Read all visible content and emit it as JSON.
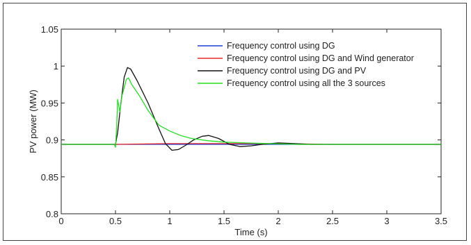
{
  "chart_data": {
    "type": "line",
    "title": "",
    "xlabel": "Time (s)",
    "ylabel": "PV power (MW)",
    "xlim": [
      0,
      3.5
    ],
    "ylim": [
      0.8,
      1.05
    ],
    "xticks": [
      "0",
      "0.5",
      "1",
      "1.5",
      "2",
      "2.5",
      "3",
      "3.5"
    ],
    "yticks": [
      "0.8",
      "0.85",
      "0.9",
      "0.95",
      "1",
      "1.05"
    ],
    "grid": false,
    "legend_position": "top-right",
    "series": [
      {
        "name": "Frequency control using DG",
        "color": "#1f3fd6",
        "points": [
          [
            0,
            0.894
          ],
          [
            0.5,
            0.894
          ],
          [
            1.0,
            0.894
          ],
          [
            1.5,
            0.894
          ],
          [
            2.0,
            0.894
          ],
          [
            2.5,
            0.894
          ],
          [
            3.0,
            0.894
          ],
          [
            3.5,
            0.894
          ]
        ]
      },
      {
        "name": "Frequency control using DG and Wind generator",
        "color": "#e8282b",
        "points": [
          [
            0,
            0.894
          ],
          [
            0.5,
            0.894
          ],
          [
            1.0,
            0.895
          ],
          [
            1.5,
            0.895
          ],
          [
            2.0,
            0.895
          ],
          [
            2.5,
            0.894
          ],
          [
            3.0,
            0.894
          ],
          [
            3.5,
            0.894
          ]
        ]
      },
      {
        "name": "Frequency control using DG and PV",
        "color": "#111111",
        "points": [
          [
            0,
            0.894
          ],
          [
            0.5,
            0.894
          ],
          [
            0.52,
            0.91
          ],
          [
            0.55,
            0.95
          ],
          [
            0.58,
            0.985
          ],
          [
            0.61,
            0.998
          ],
          [
            0.64,
            0.996
          ],
          [
            0.7,
            0.98
          ],
          [
            0.8,
            0.95
          ],
          [
            0.9,
            0.915
          ],
          [
            0.96,
            0.895
          ],
          [
            1.02,
            0.886
          ],
          [
            1.08,
            0.887
          ],
          [
            1.15,
            0.893
          ],
          [
            1.22,
            0.9
          ],
          [
            1.3,
            0.905
          ],
          [
            1.36,
            0.906
          ],
          [
            1.45,
            0.902
          ],
          [
            1.55,
            0.894
          ],
          [
            1.65,
            0.891
          ],
          [
            1.75,
            0.892
          ],
          [
            1.85,
            0.894
          ],
          [
            2.0,
            0.896
          ],
          [
            2.15,
            0.895
          ],
          [
            2.3,
            0.894
          ],
          [
            2.6,
            0.894
          ],
          [
            3.0,
            0.894
          ],
          [
            3.5,
            0.894
          ]
        ]
      },
      {
        "name": "Frequency control using all the 3 sources",
        "color": "#22e022",
        "points": [
          [
            0,
            0.894
          ],
          [
            0.49,
            0.894
          ],
          [
            0.5,
            0.89
          ],
          [
            0.51,
            0.915
          ],
          [
            0.52,
            0.955
          ],
          [
            0.54,
            0.938
          ],
          [
            0.56,
            0.96
          ],
          [
            0.6,
            0.982
          ],
          [
            0.62,
            0.984
          ],
          [
            0.65,
            0.975
          ],
          [
            0.72,
            0.96
          ],
          [
            0.8,
            0.94
          ],
          [
            0.9,
            0.92
          ],
          [
            1.0,
            0.912
          ],
          [
            1.1,
            0.906
          ],
          [
            1.2,
            0.902
          ],
          [
            1.35,
            0.899
          ],
          [
            1.5,
            0.897
          ],
          [
            1.7,
            0.896
          ],
          [
            1.9,
            0.895
          ],
          [
            2.2,
            0.894
          ],
          [
            2.6,
            0.894
          ],
          [
            3.0,
            0.894
          ],
          [
            3.5,
            0.894
          ]
        ]
      }
    ]
  }
}
